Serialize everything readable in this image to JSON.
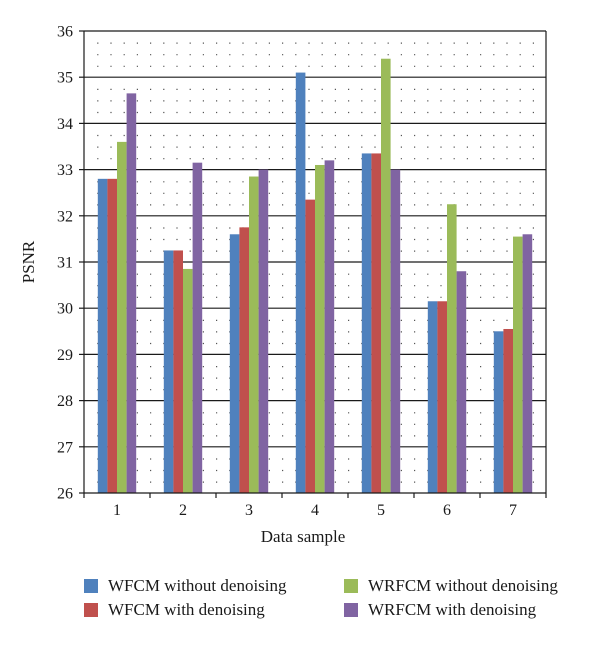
{
  "chart_data": {
    "type": "bar",
    "title": "",
    "xlabel": "Data sample",
    "ylabel": "PSNR",
    "ylim": [
      26,
      36
    ],
    "yticks": [
      "26",
      "27",
      "28",
      "29",
      "30",
      "31",
      "32",
      "33",
      "34",
      "35",
      "36"
    ],
    "categories": [
      "1",
      "2",
      "3",
      "4",
      "5",
      "6",
      "7"
    ],
    "grid": "dotted",
    "legend_position": "bottom",
    "series": [
      {
        "name": "WFCM without denoising",
        "color": "#4f81bd",
        "values": [
          32.8,
          31.25,
          31.6,
          35.1,
          33.35,
          30.15,
          29.5
        ]
      },
      {
        "name": "WFCM with denoising",
        "color": "#c0504d",
        "values": [
          32.8,
          31.25,
          31.75,
          32.35,
          33.35,
          30.15,
          29.55
        ]
      },
      {
        "name": "WRFCM without denoising",
        "color": "#9bbb59",
        "values": [
          33.6,
          30.85,
          32.85,
          33.1,
          35.4,
          32.25,
          31.55
        ]
      },
      {
        "name": "WRFCM with denoising",
        "color": "#8064a2",
        "values": [
          34.65,
          33.15,
          33.0,
          33.2,
          33.0,
          30.8,
          31.6
        ]
      }
    ]
  }
}
